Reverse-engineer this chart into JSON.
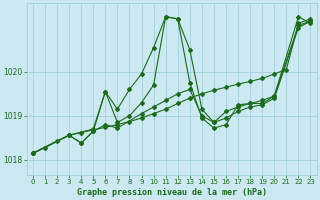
{
  "title": "Graphe pression niveau de la mer (hPa)",
  "bg_color": "#cce8f0",
  "grid_color": "#99ccd9",
  "line_color": "#1a6b1a",
  "xlim": [
    -0.5,
    23.5
  ],
  "ylim": [
    1017.65,
    1021.55
  ],
  "yticks": [
    1018,
    1019,
    1020
  ],
  "xticks": [
    0,
    1,
    2,
    3,
    4,
    5,
    6,
    7,
    8,
    9,
    10,
    11,
    12,
    13,
    14,
    15,
    16,
    17,
    18,
    19,
    20,
    21,
    22,
    23
  ],
  "lines": [
    {
      "x": [
        0,
        1,
        2,
        3,
        4,
        5,
        6,
        7,
        8,
        9,
        10,
        11,
        12,
        13,
        14,
        15,
        16,
        17,
        18,
        19,
        20,
        21,
        22,
        23
      ],
      "y": [
        1018.15,
        1018.28,
        1018.42,
        1018.56,
        1018.62,
        1018.68,
        1018.74,
        1018.8,
        1018.87,
        1018.95,
        1019.05,
        1019.15,
        1019.28,
        1019.4,
        1019.5,
        1019.58,
        1019.65,
        1019.72,
        1019.78,
        1019.85,
        1019.95,
        1020.05,
        1021.1,
        1021.2
      ]
    },
    {
      "x": [
        0,
        3,
        4,
        5,
        6,
        7,
        8,
        9,
        10,
        11,
        12,
        13,
        14,
        15,
        16,
        17,
        18,
        19,
        20,
        22,
        23
      ],
      "y": [
        1018.15,
        1018.56,
        1018.38,
        1018.65,
        1019.55,
        1019.15,
        1019.6,
        1019.95,
        1020.55,
        1021.25,
        1021.2,
        1020.5,
        1019.15,
        1018.85,
        1018.95,
        1019.1,
        1019.2,
        1019.25,
        1019.4,
        1021.0,
        1021.15
      ]
    },
    {
      "x": [
        0,
        3,
        5,
        6,
        7,
        8,
        9,
        10,
        11,
        12,
        13,
        14,
        15,
        16,
        17,
        18,
        19,
        20,
        22,
        23
      ],
      "y": [
        1018.15,
        1018.56,
        1018.7,
        1019.55,
        1018.85,
        1019.0,
        1019.3,
        1019.7,
        1021.25,
        1021.2,
        1019.75,
        1018.95,
        1018.72,
        1018.8,
        1019.25,
        1019.28,
        1019.28,
        1019.45,
        1021.25,
        1021.1
      ]
    },
    {
      "x": [
        0,
        3,
        4,
        5,
        6,
        7,
        9,
        10,
        11,
        12,
        13,
        14,
        15,
        16,
        17,
        18,
        19,
        20,
        22,
        23
      ],
      "y": [
        1018.15,
        1018.56,
        1018.38,
        1018.65,
        1018.8,
        1018.72,
        1019.05,
        1019.2,
        1019.35,
        1019.5,
        1019.6,
        1019.0,
        1018.85,
        1019.1,
        1019.2,
        1019.28,
        1019.35,
        1019.45,
        1021.05,
        1021.15
      ]
    }
  ]
}
